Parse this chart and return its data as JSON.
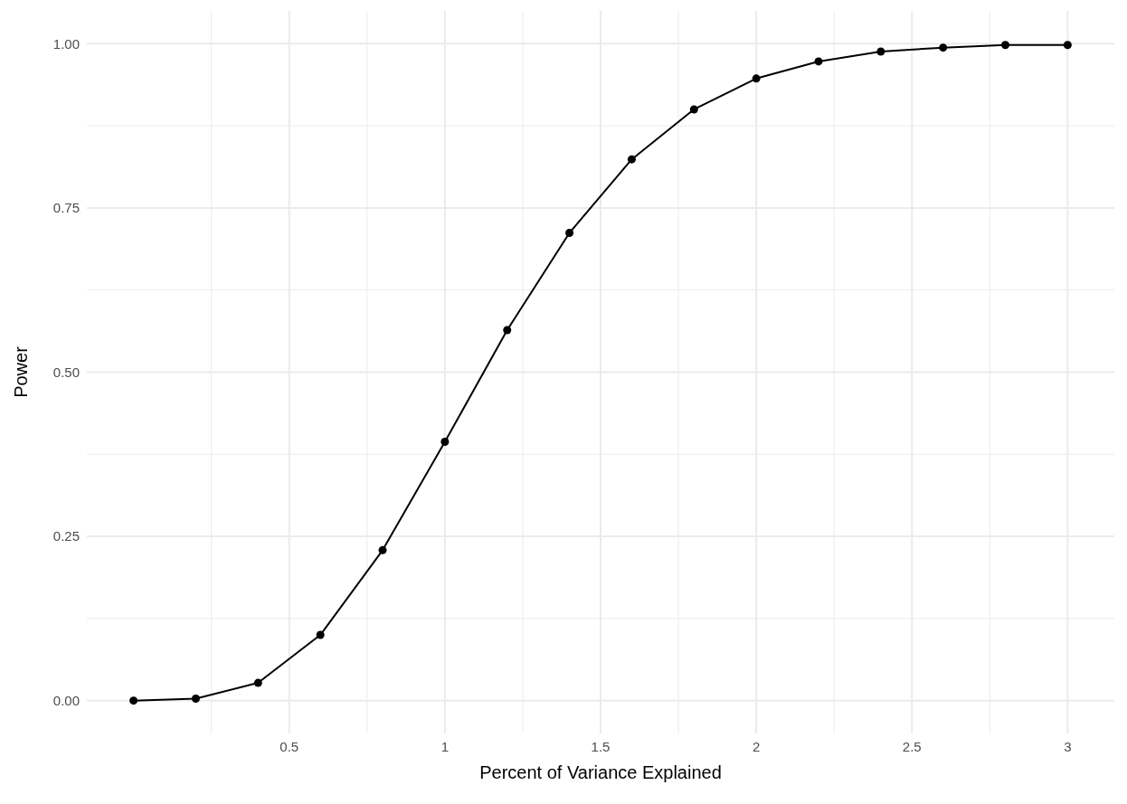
{
  "chart_data": {
    "type": "line",
    "xlabel": "Percent of Variance Explained",
    "ylabel": "Power",
    "xlim": [
      -0.15,
      3.15
    ],
    "ylim": [
      -0.05,
      1.05
    ],
    "xticks": [
      {
        "value": 0.25,
        "label": null
      },
      0.5,
      {
        "value": 0.75,
        "label": null
      },
      1,
      {
        "value": 1.25,
        "label": null
      },
      1.5,
      {
        "value": 1.75,
        "label": null
      },
      2,
      {
        "value": 2.25,
        "label": null
      },
      2.5,
      {
        "value": 2.75,
        "label": null
      },
      3
    ],
    "yticks": [
      {
        "value": 0,
        "label": "0.00"
      },
      {
        "value": 0.125,
        "label": null
      },
      0.25,
      {
        "value": 0.375,
        "label": null
      },
      {
        "value": 0.5,
        "label": "0.50"
      },
      {
        "value": 0.625,
        "label": null
      },
      0.75,
      {
        "value": 0.875,
        "label": null
      },
      {
        "value": 1,
        "label": "1.00"
      }
    ],
    "x": [
      0,
      0.2,
      0.4,
      0.6,
      0.8,
      1,
      1.2,
      1.4,
      1.6,
      1.8,
      2,
      2.2,
      2.4,
      2.6,
      2.8,
      3
    ],
    "series": [
      {
        "color": "#000000",
        "values": [
          0,
          0.003,
          0.027,
          0.1,
          0.229,
          0.394,
          0.564,
          0.712,
          0.824,
          0.9,
          0.947,
          0.973,
          0.988,
          0.994,
          0.998,
          0.998
        ]
      }
    ],
    "grid": true,
    "marker": "circle",
    "line_style": "solid"
  }
}
